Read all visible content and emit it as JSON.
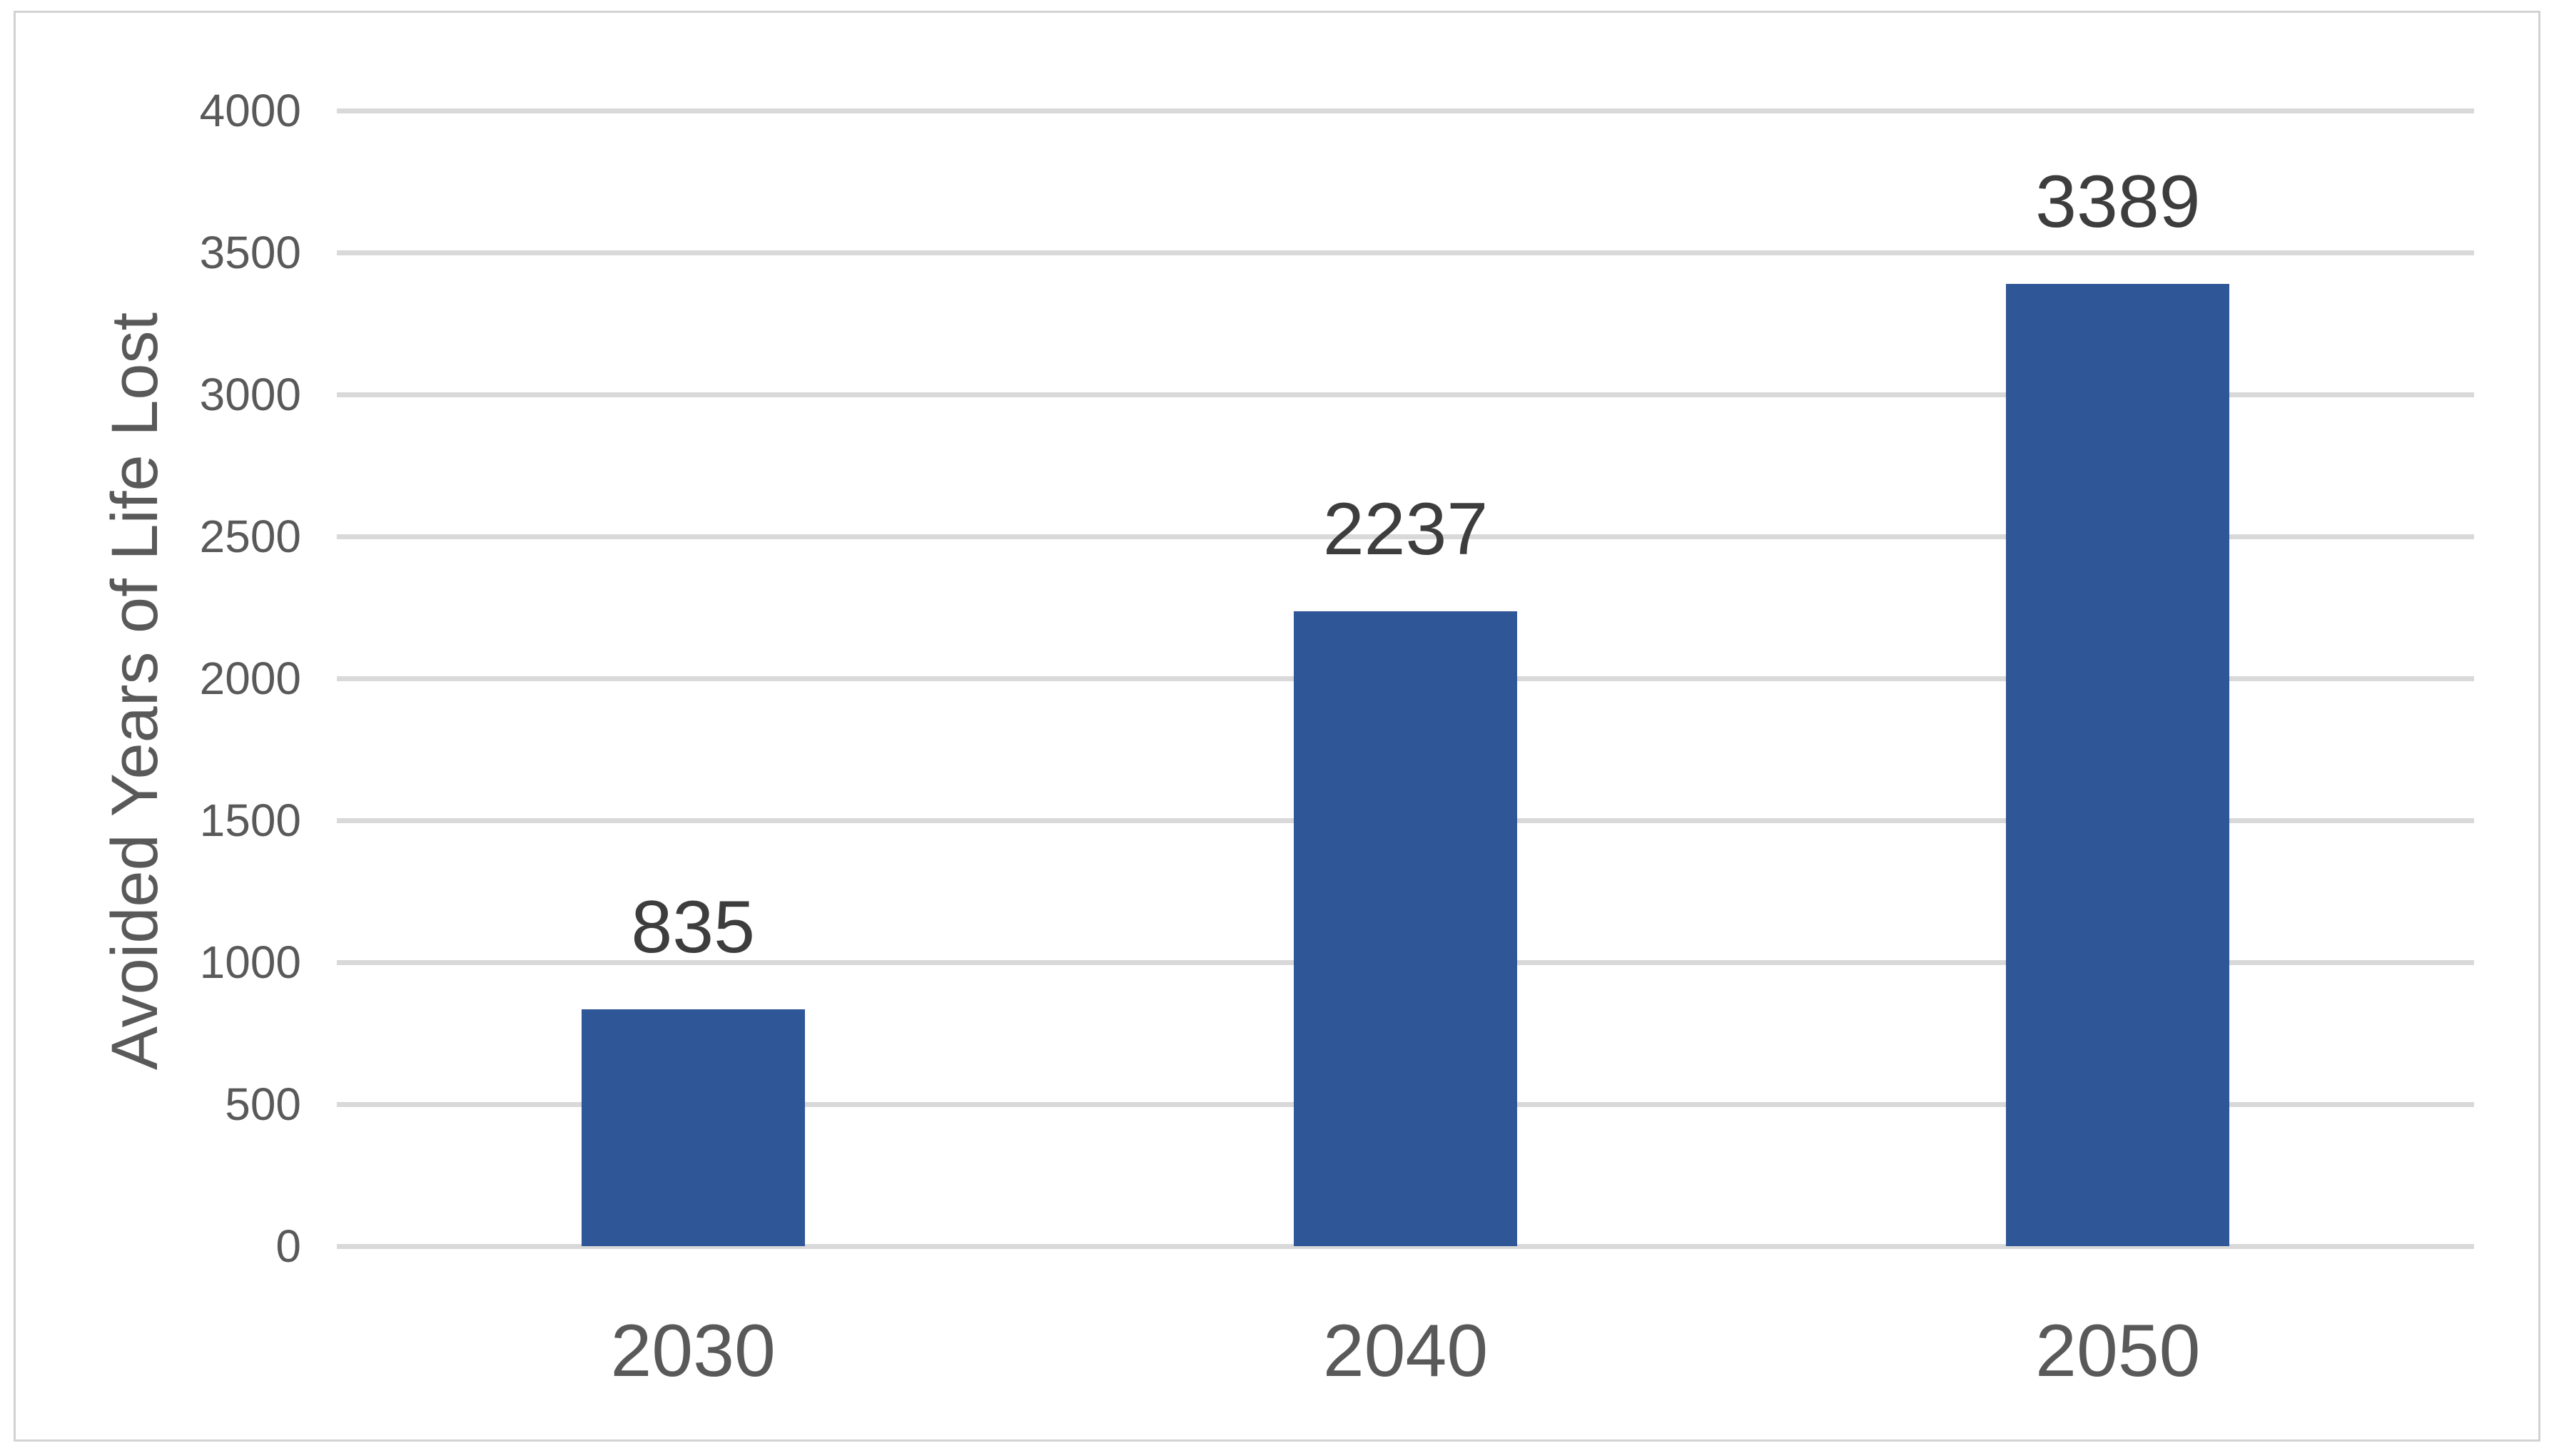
{
  "chart_data": {
    "type": "bar",
    "title": "",
    "categories": [
      "2030",
      "2040",
      "2050"
    ],
    "values": [
      835,
      2237,
      3389
    ],
    "data_labels": [
      "835",
      "2237",
      "3389"
    ],
    "xlabel": "",
    "ylabel": "Avoided Years of Life Lost",
    "ylim": [
      0,
      4000
    ],
    "ytick_step": 500,
    "yticks": [
      0,
      500,
      1000,
      1500,
      2000,
      2500,
      3000,
      3500,
      4000
    ],
    "grid": true,
    "legend_position": "none",
    "colors": {
      "bar": "#2f5696",
      "gridline": "#d9d9d9",
      "axis_line": "#d9d9d9",
      "axis_text": "#595959",
      "data_label_text": "#3d3d3d",
      "frame_border": "#d2d2d2",
      "background": "#ffffff"
    }
  }
}
